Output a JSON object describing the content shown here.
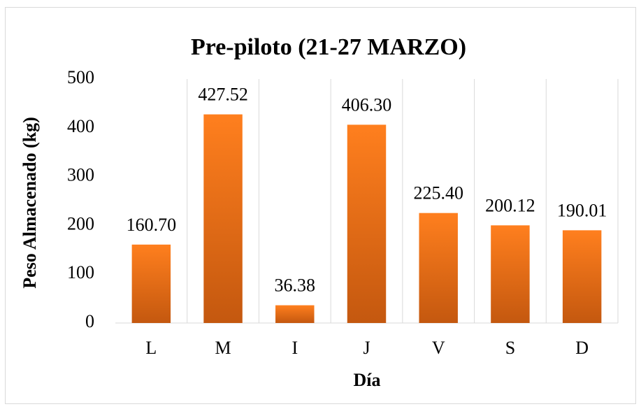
{
  "chart_data": {
    "type": "bar",
    "title": "Pre-piloto (21-27 MARZO)",
    "x_label": "Día",
    "y_label": "Peso Almacenado (kg)",
    "categories": [
      "L",
      "M",
      "I",
      "J",
      "V",
      "S",
      "D"
    ],
    "values": [
      160.7,
      427.52,
      36.38,
      406.3,
      225.4,
      200.12,
      190.01
    ],
    "value_labels": [
      "160.70",
      "427.52",
      "36.38",
      "406.30",
      "225.40",
      "200.12",
      "190.01"
    ],
    "color": "#f5781c",
    "ylim": [
      0,
      500
    ],
    "yticks": [
      0,
      100,
      200,
      300,
      400,
      500
    ],
    "grid": false
  }
}
